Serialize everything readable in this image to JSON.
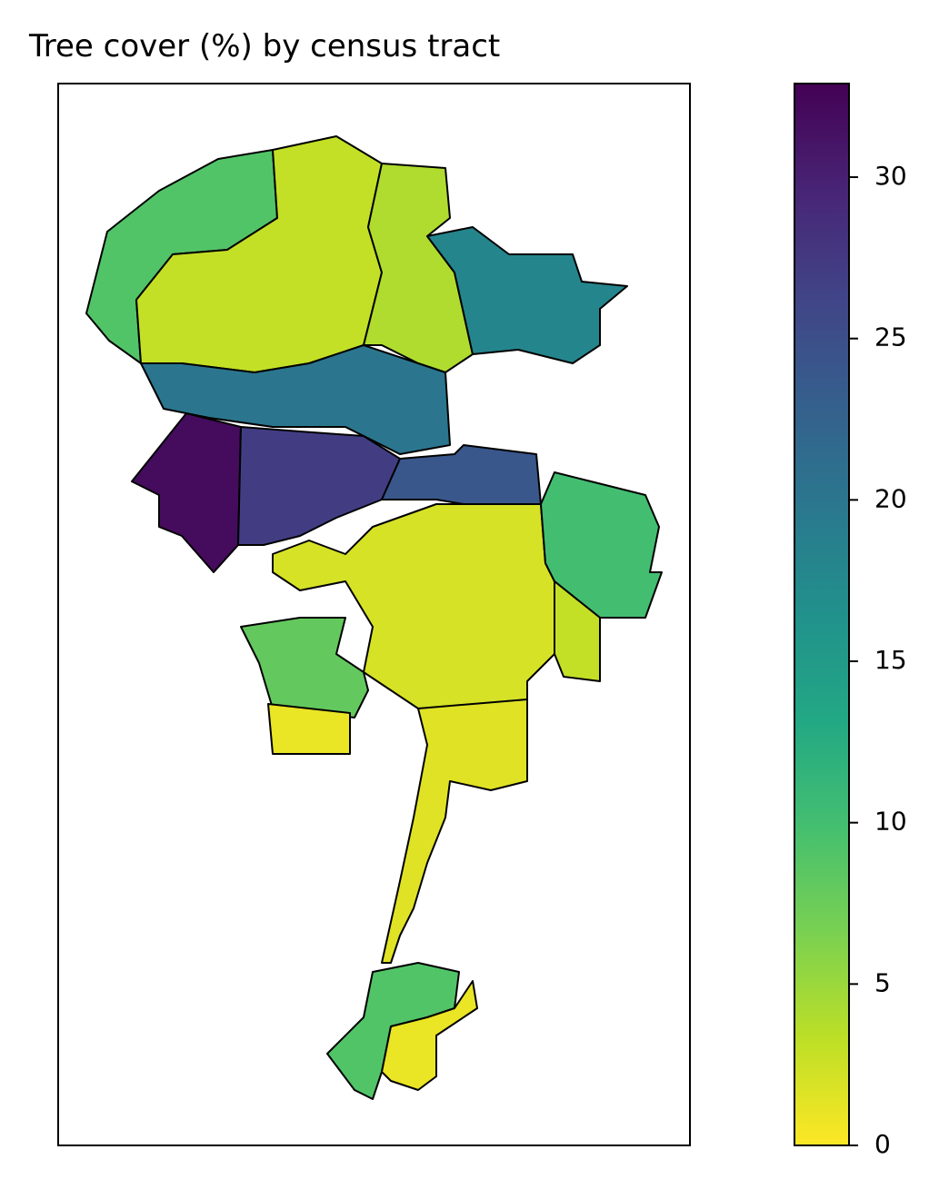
{
  "chart_data": {
    "type": "choropleth",
    "title": "Tree cover (%) by census tract",
    "colormap": "viridis_r",
    "values": [
      9,
      3,
      4,
      18,
      20,
      32,
      27,
      24,
      2,
      10,
      8,
      1,
      1.5,
      9,
      1,
      3
    ],
    "clim": [
      0,
      32.9
    ],
    "ticks": [
      0,
      5,
      10,
      15,
      20,
      25,
      30
    ]
  }
}
